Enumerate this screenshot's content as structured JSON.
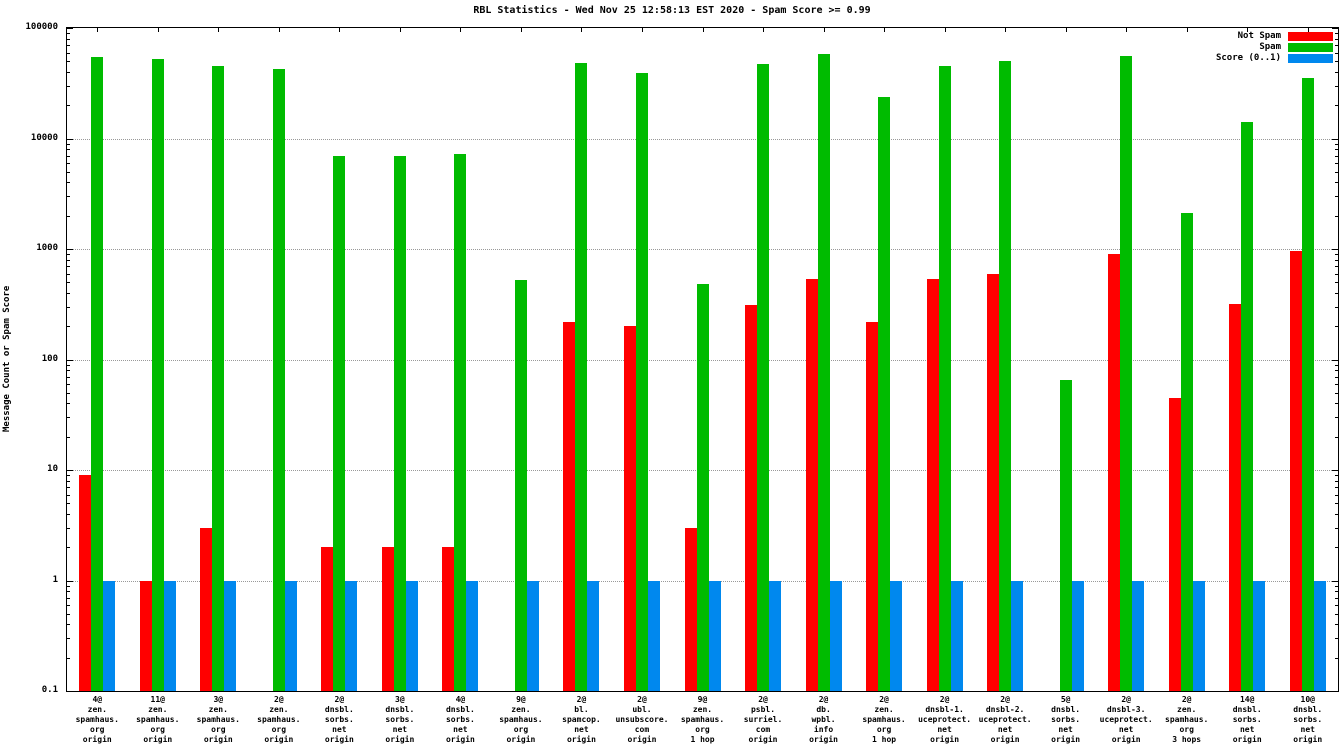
{
  "chart_data": {
    "type": "bar",
    "title": "RBL Statistics - Wed Nov 25 12:58:13 EST 2020 - Spam Score >= 0.99",
    "ylabel": "Message Count or Spam Score",
    "xlabel": "",
    "yscale": "log",
    "ylim": [
      0.1,
      100000
    ],
    "yticks": [
      0.1,
      1,
      10,
      100,
      1000,
      10000,
      100000
    ],
    "ytick_labels": [
      "0.1",
      "1",
      "10",
      "100",
      "1000",
      "10000",
      "100000"
    ],
    "grid": "horizontal-dotted",
    "legend_position": "top-right-inside",
    "categories": [
      [
        "4@",
        "zen.",
        "spamhaus.",
        "org",
        "origin"
      ],
      [
        "11@",
        "zen.",
        "spamhaus.",
        "org",
        "origin"
      ],
      [
        "3@",
        "zen.",
        "spamhaus.",
        "org",
        "origin"
      ],
      [
        "2@",
        "zen.",
        "spamhaus.",
        "org",
        "origin"
      ],
      [
        "2@",
        "dnsbl.",
        "sorbs.",
        "net",
        "origin"
      ],
      [
        "3@",
        "dnsbl.",
        "sorbs.",
        "net",
        "origin"
      ],
      [
        "4@",
        "dnsbl.",
        "sorbs.",
        "net",
        "origin"
      ],
      [
        "9@",
        "zen.",
        "spamhaus.",
        "org",
        "origin"
      ],
      [
        "2@",
        "bl.",
        "spamcop.",
        "net",
        "origin"
      ],
      [
        "2@",
        "ubl.",
        "unsubscore.",
        "com",
        "origin"
      ],
      [
        "9@",
        "zen.",
        "spamhaus.",
        "org",
        "1 hop"
      ],
      [
        "2@",
        "psbl.",
        "surriel.",
        "com",
        "origin"
      ],
      [
        "2@",
        "db.",
        "wpbl.",
        "info",
        "origin"
      ],
      [
        "2@",
        "zen.",
        "spamhaus.",
        "org",
        "1 hop"
      ],
      [
        "2@",
        "dnsbl-1.",
        "uceprotect.",
        "net",
        "origin"
      ],
      [
        "2@",
        "dnsbl-2.",
        "uceprotect.",
        "net",
        "origin"
      ],
      [
        "5@",
        "dnsbl.",
        "sorbs.",
        "net",
        "origin"
      ],
      [
        "2@",
        "dnsbl-3.",
        "uceprotect.",
        "net",
        "origin"
      ],
      [
        "2@",
        "zen.",
        "spamhaus.",
        "org",
        "3 hops"
      ],
      [
        "14@",
        "dnsbl.",
        "sorbs.",
        "net",
        "origin"
      ],
      [
        "10@",
        "dnsbl.",
        "sorbs.",
        "net",
        "origin"
      ]
    ],
    "series": [
      {
        "name": "Not Spam",
        "color": "#ff0000",
        "values": [
          9,
          1,
          3,
          0,
          2,
          2,
          2,
          0,
          220,
          200,
          3,
          310,
          540,
          220,
          530,
          600,
          0,
          900,
          45,
          320,
          950
        ]
      },
      {
        "name": "Spam",
        "color": "#00bb00",
        "values": [
          55000,
          52000,
          45000,
          43000,
          7000,
          7000,
          7200,
          520,
          48000,
          39000,
          480,
          47000,
          58000,
          24000,
          45000,
          50000,
          65,
          56000,
          2100,
          14000,
          35000
        ]
      },
      {
        "name": "Score (0..1)",
        "color": "#0088ee",
        "values": [
          1,
          1,
          1,
          1,
          1,
          1,
          1,
          1,
          1,
          1,
          1,
          1,
          1,
          1,
          1,
          1,
          1,
          1,
          1,
          1,
          1
        ]
      }
    ]
  }
}
